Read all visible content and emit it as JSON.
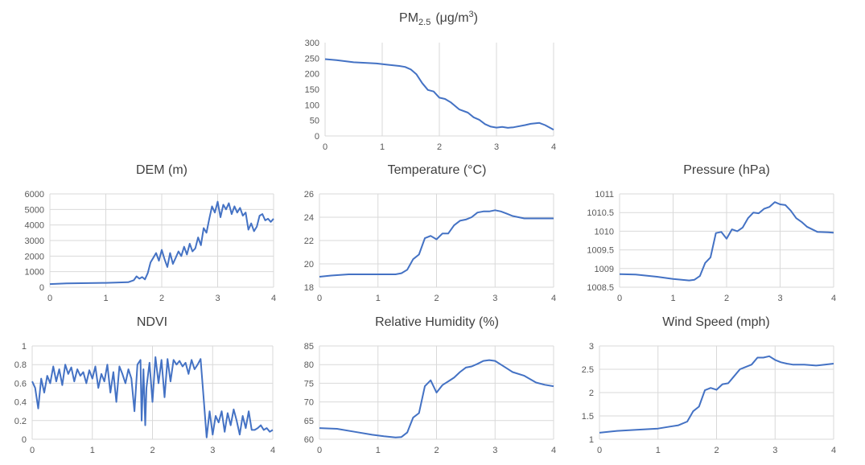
{
  "chart_data": [
    {
      "id": "pm25",
      "type": "line",
      "title": "PM",
      "title_sub": "2.5",
      "title_suffix": "(μg/m",
      "title_sup": "3",
      "title_end": ")",
      "xlim": [
        0,
        4
      ],
      "ylim": [
        0,
        300
      ],
      "xticks": [
        0,
        1,
        2,
        3,
        4
      ],
      "yticks": [
        0,
        50,
        100,
        150,
        200,
        250,
        300
      ],
      "ytick_labels": [
        "0",
        "50",
        "100",
        "150",
        "200",
        "250",
        "300"
      ],
      "grid": "vertical",
      "color": "#4472c4",
      "x": [
        0,
        0.2,
        0.5,
        0.9,
        1.1,
        1.3,
        1.4,
        1.5,
        1.6,
        1.7,
        1.8,
        1.9,
        2.0,
        2.1,
        2.2,
        2.35,
        2.5,
        2.6,
        2.7,
        2.8,
        2.9,
        3.0,
        3.1,
        3.2,
        3.3,
        3.5,
        3.6,
        3.75,
        3.85,
        4.0
      ],
      "y": [
        247,
        244,
        237,
        233,
        229,
        225,
        222,
        214,
        198,
        170,
        148,
        143,
        123,
        119,
        108,
        85,
        75,
        60,
        52,
        38,
        30,
        27,
        29,
        26,
        28,
        35,
        39,
        42,
        35,
        20
      ]
    },
    {
      "id": "dem",
      "type": "line",
      "title": "DEM (m)",
      "xlim": [
        0,
        4
      ],
      "ylim": [
        0,
        6000
      ],
      "xticks": [
        0,
        1,
        2,
        3,
        4
      ],
      "yticks": [
        0,
        1000,
        2000,
        3000,
        4000,
        5000,
        6000
      ],
      "ytick_labels": [
        "0",
        "1000",
        "2000",
        "3000",
        "4000",
        "5000",
        "6000"
      ],
      "grid": "both",
      "color": "#4472c4",
      "x": [
        0,
        0.3,
        1.0,
        1.4,
        1.5,
        1.55,
        1.6,
        1.65,
        1.7,
        1.75,
        1.8,
        1.85,
        1.9,
        1.95,
        2.0,
        2.05,
        2.1,
        2.15,
        2.2,
        2.25,
        2.3,
        2.35,
        2.4,
        2.45,
        2.5,
        2.55,
        2.6,
        2.65,
        2.7,
        2.75,
        2.8,
        2.85,
        2.9,
        2.95,
        3.0,
        3.05,
        3.1,
        3.15,
        3.2,
        3.25,
        3.3,
        3.35,
        3.4,
        3.45,
        3.5,
        3.55,
        3.6,
        3.65,
        3.7,
        3.75,
        3.8,
        3.85,
        3.9,
        3.95,
        4.0
      ],
      "y": [
        200,
        250,
        280,
        320,
        450,
        700,
        550,
        650,
        500,
        900,
        1600,
        1900,
        2200,
        1700,
        2400,
        1800,
        1300,
        2200,
        1500,
        1900,
        2300,
        2000,
        2600,
        2100,
        2800,
        2300,
        2500,
        3200,
        2700,
        3800,
        3500,
        4400,
        5200,
        4800,
        5500,
        4500,
        5300,
        5000,
        5400,
        4700,
        5200,
        4800,
        5100,
        4600,
        4800,
        3700,
        4100,
        3600,
        3900,
        4600,
        4700,
        4300,
        4400,
        4200,
        4400
      ]
    },
    {
      "id": "temperature",
      "type": "line",
      "title": "Temperature (°C)",
      "xlim": [
        0,
        4
      ],
      "ylim": [
        18,
        26
      ],
      "xticks": [
        0,
        1,
        2,
        3,
        4
      ],
      "yticks": [
        18,
        20,
        22,
        24,
        26
      ],
      "ytick_labels": [
        "18",
        "20",
        "22",
        "24",
        "26"
      ],
      "grid": "both",
      "color": "#4472c4",
      "x": [
        0,
        0.2,
        0.5,
        0.9,
        1.1,
        1.3,
        1.4,
        1.5,
        1.6,
        1.7,
        1.8,
        1.9,
        2.0,
        2.1,
        2.2,
        2.3,
        2.4,
        2.5,
        2.6,
        2.7,
        2.8,
        2.9,
        3.0,
        3.1,
        3.2,
        3.3,
        3.5,
        3.7,
        4.0
      ],
      "y": [
        18.9,
        19.0,
        19.1,
        19.1,
        19.1,
        19.1,
        19.2,
        19.5,
        20.4,
        20.8,
        22.2,
        22.4,
        22.1,
        22.6,
        22.6,
        23.3,
        23.7,
        23.8,
        24.0,
        24.4,
        24.5,
        24.5,
        24.6,
        24.5,
        24.3,
        24.1,
        23.9,
        23.9,
        23.9
      ]
    },
    {
      "id": "pressure",
      "type": "line",
      "title": "Pressure (hPa)",
      "xlim": [
        0,
        4
      ],
      "ylim": [
        1008.5,
        1011
      ],
      "xticks": [
        0,
        1,
        2,
        3,
        4
      ],
      "yticks": [
        1008.5,
        1009,
        1009.5,
        1010,
        1010.5,
        1011
      ],
      "ytick_labels": [
        "1008.5",
        "1009",
        "1009.5",
        "1010",
        "1010.5",
        "1011"
      ],
      "grid": "both",
      "color": "#4472c4",
      "x": [
        0,
        0.3,
        0.7,
        1.0,
        1.3,
        1.4,
        1.5,
        1.6,
        1.7,
        1.8,
        1.9,
        2.0,
        2.1,
        2.2,
        2.3,
        2.4,
        2.5,
        2.6,
        2.7,
        2.8,
        2.9,
        3.0,
        3.1,
        3.2,
        3.3,
        3.4,
        3.5,
        3.7,
        3.9,
        4.0
      ],
      "y": [
        1008.85,
        1008.84,
        1008.78,
        1008.72,
        1008.68,
        1008.7,
        1008.8,
        1009.15,
        1009.3,
        1009.95,
        1009.98,
        1009.8,
        1010.05,
        1010.0,
        1010.1,
        1010.35,
        1010.5,
        1010.48,
        1010.6,
        1010.65,
        1010.78,
        1010.72,
        1010.7,
        1010.55,
        1010.35,
        1010.25,
        1010.12,
        1009.98,
        1009.97,
        1009.96
      ]
    },
    {
      "id": "ndvi",
      "type": "line",
      "title": "NDVI",
      "xlim": [
        0,
        4
      ],
      "ylim": [
        0,
        1
      ],
      "xticks": [
        0,
        1,
        2,
        3,
        4
      ],
      "yticks": [
        0,
        0.2,
        0.4,
        0.6,
        0.8,
        1
      ],
      "ytick_labels": [
        "0",
        "0.2",
        "0.4",
        "0.6",
        "0.8",
        "1"
      ],
      "grid": "both",
      "color": "#4472c4",
      "x": [
        0,
        0.05,
        0.1,
        0.15,
        0.2,
        0.25,
        0.3,
        0.35,
        0.4,
        0.45,
        0.5,
        0.55,
        0.6,
        0.65,
        0.7,
        0.75,
        0.8,
        0.85,
        0.9,
        0.95,
        1.0,
        1.05,
        1.1,
        1.15,
        1.2,
        1.25,
        1.3,
        1.35,
        1.4,
        1.45,
        1.5,
        1.55,
        1.6,
        1.65,
        1.7,
        1.75,
        1.8,
        1.82,
        1.85,
        1.88,
        1.9,
        1.95,
        2.0,
        2.05,
        2.1,
        2.15,
        2.2,
        2.25,
        2.3,
        2.35,
        2.4,
        2.45,
        2.5,
        2.55,
        2.6,
        2.65,
        2.7,
        2.75,
        2.8,
        2.85,
        2.9,
        2.95,
        3.0,
        3.05,
        3.1,
        3.15,
        3.2,
        3.25,
        3.3,
        3.35,
        3.4,
        3.45,
        3.5,
        3.55,
        3.6,
        3.65,
        3.7,
        3.75,
        3.8,
        3.85,
        3.9,
        3.95,
        4.0
      ],
      "y": [
        0.62,
        0.55,
        0.33,
        0.65,
        0.5,
        0.68,
        0.6,
        0.78,
        0.62,
        0.75,
        0.58,
        0.8,
        0.7,
        0.77,
        0.62,
        0.75,
        0.68,
        0.72,
        0.6,
        0.74,
        0.65,
        0.78,
        0.55,
        0.7,
        0.62,
        0.8,
        0.5,
        0.72,
        0.4,
        0.78,
        0.7,
        0.6,
        0.75,
        0.65,
        0.3,
        0.8,
        0.85,
        0.2,
        0.75,
        0.15,
        0.55,
        0.82,
        0.4,
        0.88,
        0.6,
        0.85,
        0.45,
        0.86,
        0.62,
        0.85,
        0.8,
        0.84,
        0.78,
        0.82,
        0.7,
        0.85,
        0.75,
        0.8,
        0.86,
        0.45,
        0.02,
        0.3,
        0.05,
        0.25,
        0.18,
        0.3,
        0.08,
        0.28,
        0.15,
        0.32,
        0.2,
        0.05,
        0.25,
        0.12,
        0.3,
        0.1,
        0.1,
        0.12,
        0.15,
        0.1,
        0.12,
        0.08,
        0.1
      ]
    },
    {
      "id": "humidity",
      "type": "line",
      "title": "Relative Humidity (%)",
      "xlim": [
        0,
        4
      ],
      "ylim": [
        60,
        85
      ],
      "xticks": [
        0,
        1,
        2,
        3,
        4
      ],
      "yticks": [
        60,
        65,
        70,
        75,
        80,
        85
      ],
      "ytick_labels": [
        "60",
        "65",
        "70",
        "75",
        "80",
        "85"
      ],
      "grid": "both",
      "color": "#4472c4",
      "x": [
        0,
        0.3,
        0.6,
        0.9,
        1.1,
        1.3,
        1.4,
        1.5,
        1.6,
        1.7,
        1.8,
        1.9,
        2.0,
        2.1,
        2.2,
        2.3,
        2.4,
        2.5,
        2.6,
        2.7,
        2.8,
        2.9,
        3.0,
        3.1,
        3.2,
        3.3,
        3.5,
        3.7,
        3.85,
        4.0
      ],
      "y": [
        63.0,
        62.8,
        62.0,
        61.2,
        60.8,
        60.5,
        60.6,
        61.8,
        65.8,
        67.0,
        74.2,
        75.8,
        72.5,
        74.5,
        75.5,
        76.5,
        78.0,
        79.2,
        79.5,
        80.2,
        81.0,
        81.2,
        81.0,
        80.0,
        79.0,
        78.0,
        77.0,
        75.2,
        74.6,
        74.2
      ]
    },
    {
      "id": "wind",
      "type": "line",
      "title": "Wind Speed (mph)",
      "xlim": [
        0,
        4
      ],
      "ylim": [
        1,
        3
      ],
      "xticks": [
        0,
        1,
        2,
        3,
        4
      ],
      "yticks": [
        1,
        1.5,
        2,
        2.5,
        3
      ],
      "ytick_labels": [
        "1",
        "1.5",
        "2",
        "2.5",
        "3"
      ],
      "grid": "both",
      "color": "#4472c4",
      "x": [
        0,
        0.3,
        0.6,
        1.0,
        1.2,
        1.35,
        1.5,
        1.6,
        1.7,
        1.8,
        1.9,
        2.0,
        2.1,
        2.2,
        2.3,
        2.4,
        2.5,
        2.6,
        2.7,
        2.8,
        2.9,
        3.0,
        3.1,
        3.2,
        3.3,
        3.5,
        3.7,
        3.85,
        4.0
      ],
      "y": [
        1.14,
        1.18,
        1.2,
        1.23,
        1.27,
        1.3,
        1.38,
        1.6,
        1.7,
        2.05,
        2.1,
        2.06,
        2.18,
        2.2,
        2.35,
        2.5,
        2.55,
        2.6,
        2.75,
        2.75,
        2.78,
        2.7,
        2.65,
        2.62,
        2.6,
        2.6,
        2.58,
        2.6,
        2.62
      ]
    }
  ]
}
